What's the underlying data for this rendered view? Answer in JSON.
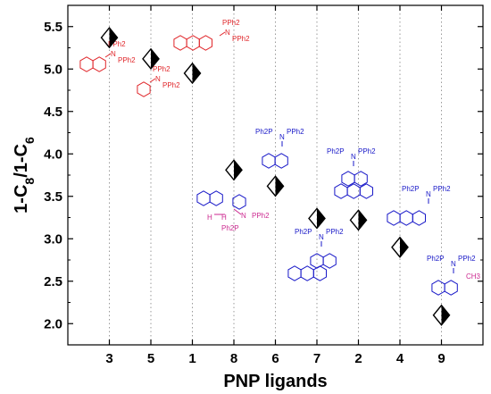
{
  "chart_data": {
    "type": "scatter",
    "title": "",
    "xlabel": "PNP ligands",
    "ylabel_main": "1-C",
    "ylabel_sub1": "8",
    "ylabel_mid": "/1-C",
    "ylabel_sub2": "6",
    "categories": [
      "3",
      "5",
      "1",
      "8",
      "6",
      "7",
      "2",
      "4",
      "9"
    ],
    "values": [
      5.37,
      5.12,
      4.95,
      3.81,
      3.62,
      3.24,
      3.22,
      2.9,
      2.1
    ],
    "ylim": [
      1.75,
      5.75
    ],
    "yticks": [
      "2.0",
      "2.5",
      "3.0",
      "3.5",
      "4.0",
      "4.5",
      "5.0",
      "5.5"
    ],
    "yticks_values": [
      2.0,
      2.5,
      3.0,
      3.5,
      4.0,
      4.5,
      5.0,
      5.5
    ],
    "grid": "vertical dotted",
    "marker": "diamond-half-filled",
    "colors": {
      "red": "#e0262a",
      "blue": "#1818c8",
      "magenta": "#cc2a90",
      "axis": "#000000",
      "grid": "#9a9a9a"
    },
    "structure_labels": [
      {
        "text": "PPh2",
        "color": "red"
      },
      {
        "text": "N",
        "color": "red"
      },
      {
        "text": "PPh2",
        "color": "red"
      },
      {
        "text": "PPh2",
        "color": "red"
      },
      {
        "text": "N",
        "color": "red"
      },
      {
        "text": "PPh2",
        "color": "red"
      },
      {
        "text": "PPh2",
        "color": "red"
      },
      {
        "text": "N",
        "color": "red"
      },
      {
        "text": "PPh2",
        "color": "red"
      },
      {
        "text": "Ph2P",
        "color": "blue"
      },
      {
        "text": "N",
        "color": "blue"
      },
      {
        "text": "PPh2",
        "color": "blue"
      },
      {
        "text": "Ph2P",
        "color": "blue"
      },
      {
        "text": "N",
        "color": "blue"
      },
      {
        "text": "PPh2",
        "color": "blue"
      },
      {
        "text": "Ph2P",
        "color": "blue"
      },
      {
        "text": "N",
        "color": "blue"
      },
      {
        "text": "PPh2",
        "color": "blue"
      },
      {
        "text": "Ph2P",
        "color": "blue"
      },
      {
        "text": "N",
        "color": "blue"
      },
      {
        "text": "PPh2",
        "color": "blue"
      },
      {
        "text": "Ph2P",
        "color": "blue"
      },
      {
        "text": "N",
        "color": "blue"
      },
      {
        "text": "PPh2",
        "color": "blue"
      },
      {
        "text": "CH3",
        "color": "magenta"
      },
      {
        "text": "H",
        "color": "magenta"
      },
      {
        "text": "H",
        "color": "magenta"
      },
      {
        "text": "N",
        "color": "magenta"
      },
      {
        "text": "PPh2",
        "color": "magenta"
      },
      {
        "text": "Ph2P",
        "color": "magenta"
      }
    ]
  }
}
